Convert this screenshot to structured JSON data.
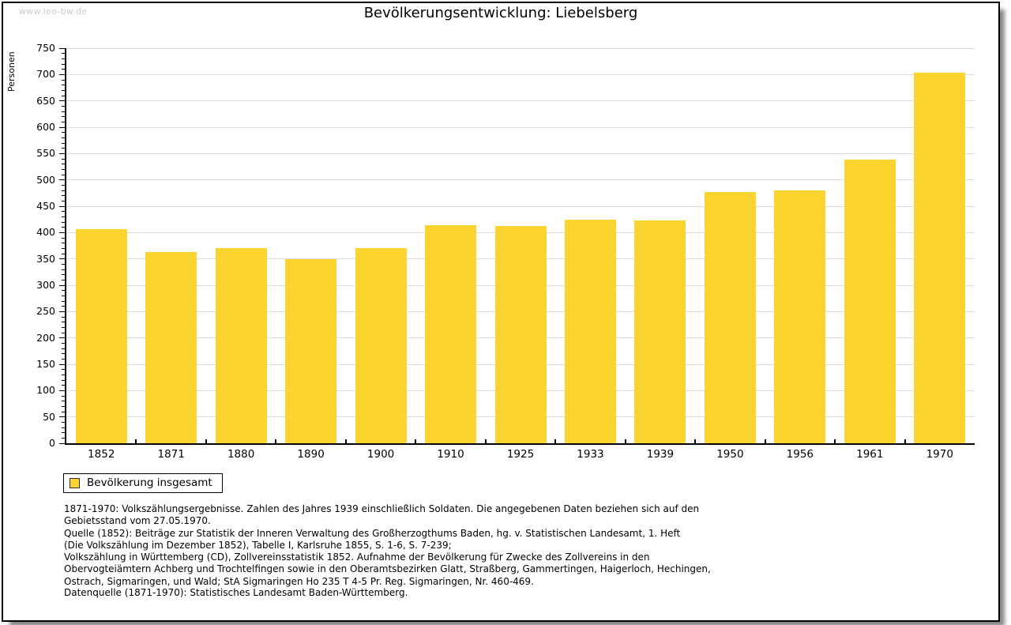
{
  "watermark": "www.leo-bw.de",
  "chart_data": {
    "type": "bar",
    "title": "Bevölkerungsentwicklung: Liebelsberg",
    "ylabel": "Personen",
    "xlabel": "",
    "categories": [
      "1852",
      "1871",
      "1880",
      "1890",
      "1900",
      "1910",
      "1925",
      "1933",
      "1939",
      "1950",
      "1956",
      "1961",
      "1970"
    ],
    "values": [
      406,
      363,
      370,
      350,
      371,
      414,
      413,
      425,
      423,
      477,
      480,
      538,
      703
    ],
    "ylim": [
      0,
      750
    ],
    "ytick_step": 50,
    "minor_tick_step": 10,
    "grid": true,
    "legend_position": "bottom-left",
    "legend_entries": [
      "Bevölkerung insgesamt"
    ]
  },
  "legend": {
    "label": "Bevölkerung insgesamt"
  },
  "footnotes": {
    "lines": [
      "1871-1970: Volkszählungsergebnisse. Zahlen des Jahres 1939 einschließlich Soldaten. Die angegebenen Daten beziehen sich auf den",
      "Gebietsstand vom 27.05.1970.",
      "Quelle (1852): Beiträge zur Statistik der Inneren Verwaltung des Großherzogthums Baden, hg. v. Statistischen Landesamt, 1. Heft",
      "(Die Volkszählung im Dezember 1852), Tabelle I, Karlsruhe 1855, S. 1-6, S. 7-239;",
      "Volkszählung in Württemberg (CD), Zollvereinsstatistik 1852. Aufnahme der Bevölkerung für Zwecke des Zollvereins in den",
      "Obervogteiämtern Achberg und Trochtelfingen sowie in den Oberamtsbezirken Glatt, Straßberg, Gammertingen, Haigerloch, Hechingen,",
      "Ostrach, Sigmaringen, und Wald; StA Sigmaringen Ho 235 T 4-5 Pr. Reg. Sigmaringen, Nr. 460-469."
    ],
    "datasource": "Datenquelle (1871-1970): Statistisches Landesamt Baden-Württemberg."
  },
  "colors": {
    "bar": "#FCD42F",
    "grid": "#DCDCDC",
    "axis": "#000000",
    "watermark": "#CCCCCC"
  }
}
